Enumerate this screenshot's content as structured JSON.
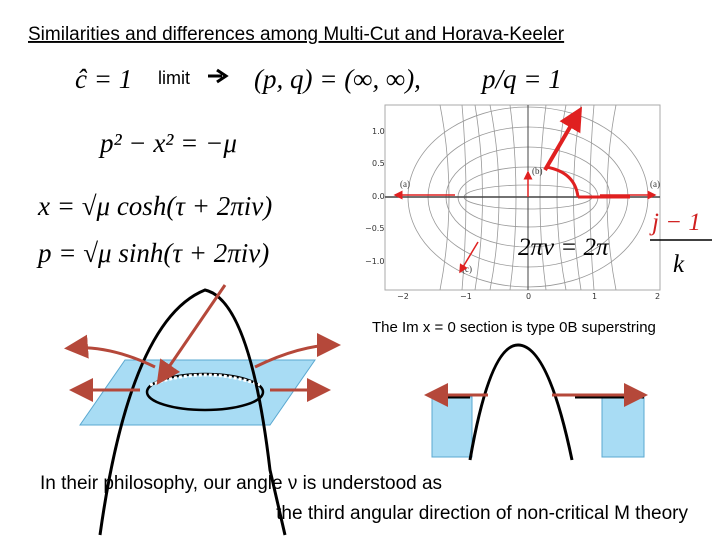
{
  "title": "Similarities and differences among Multi-Cut and Horava-Keeler",
  "equations": {
    "c_hat": "ĉ = 1",
    "limit": "limit",
    "pq_limit": "(p, q) = (∞, ∞),",
    "ratio": "p/q = 1",
    "curve": "p² − x² = −μ",
    "x_param": "x = √μ cosh(τ + 2πiν)",
    "p_param": "p = √μ sinh(τ + 2πiν)",
    "angle_lhs": "2πν = 2π",
    "angle_num": "j − 1",
    "angle_den": "k"
  },
  "figure": {
    "yticks": [
      "1.0",
      "0.5",
      "0.0",
      "−0.5",
      "−1.0"
    ],
    "xticks": [
      "−2",
      "−1",
      "0",
      "1",
      "2"
    ],
    "labels": [
      "(a)",
      "(a)",
      "(b)",
      "(c)"
    ]
  },
  "caption": "The Im x = 0 section is type 0B superstring",
  "bottom_text": [
    "In their philosophy, our angle ν is understood as",
    "the third angular direction of non-critical M theory"
  ]
}
